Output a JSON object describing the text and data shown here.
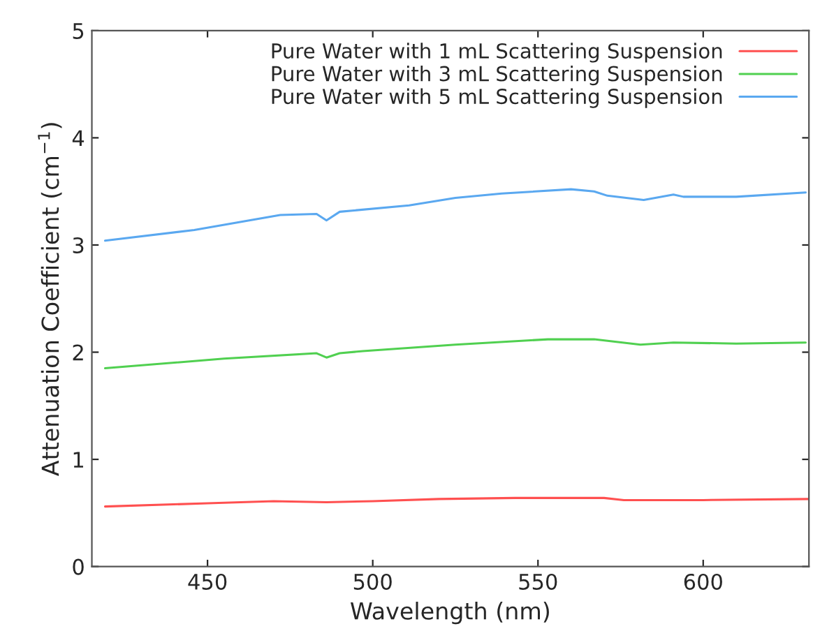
{
  "chart_data": {
    "type": "line",
    "xlabel": "Wavelength (nm)",
    "ylabel": "Attenuation Coefficient (cm$^{−1}$)",
    "xlim": [
      415,
      632
    ],
    "ylim": [
      0,
      5
    ],
    "xticks": [
      450,
      500,
      550,
      600
    ],
    "yticks": [
      0,
      1,
      2,
      3,
      4,
      5
    ],
    "grid": false,
    "legend": "top right",
    "marker": "none",
    "line_style": "solid",
    "series": [
      {
        "name": "Pure Water with 1 mL Scattering Suspension",
        "color": "#ff5050",
        "x": [
          419,
          450,
          470,
          486,
          500,
          520,
          543,
          570,
          576,
          600,
          632
        ],
        "values": [
          0.56,
          0.59,
          0.61,
          0.6,
          0.61,
          0.63,
          0.64,
          0.64,
          0.62,
          0.62,
          0.63
        ]
      },
      {
        "name": "Pure Water with 3 mL Scattering Suspension",
        "color": "#50d050",
        "x": [
          419,
          455,
          483,
          486,
          490,
          497,
          525,
          553,
          567,
          581,
          591,
          610,
          631
        ],
        "values": [
          1.85,
          1.94,
          1.99,
          1.95,
          1.99,
          2.01,
          2.07,
          2.12,
          2.12,
          2.07,
          2.09,
          2.08,
          2.09
        ]
      },
      {
        "name": "Pure Water with 5 mL Scattering Suspension",
        "color": "#5aa8f0",
        "x": [
          419,
          446,
          472,
          483,
          486,
          490,
          511,
          525,
          539,
          560,
          567,
          571,
          582,
          591,
          594,
          610,
          631
        ],
        "values": [
          3.04,
          3.14,
          3.28,
          3.29,
          3.23,
          3.31,
          3.37,
          3.44,
          3.48,
          3.52,
          3.5,
          3.46,
          3.42,
          3.47,
          3.45,
          3.45,
          3.49
        ]
      }
    ]
  }
}
